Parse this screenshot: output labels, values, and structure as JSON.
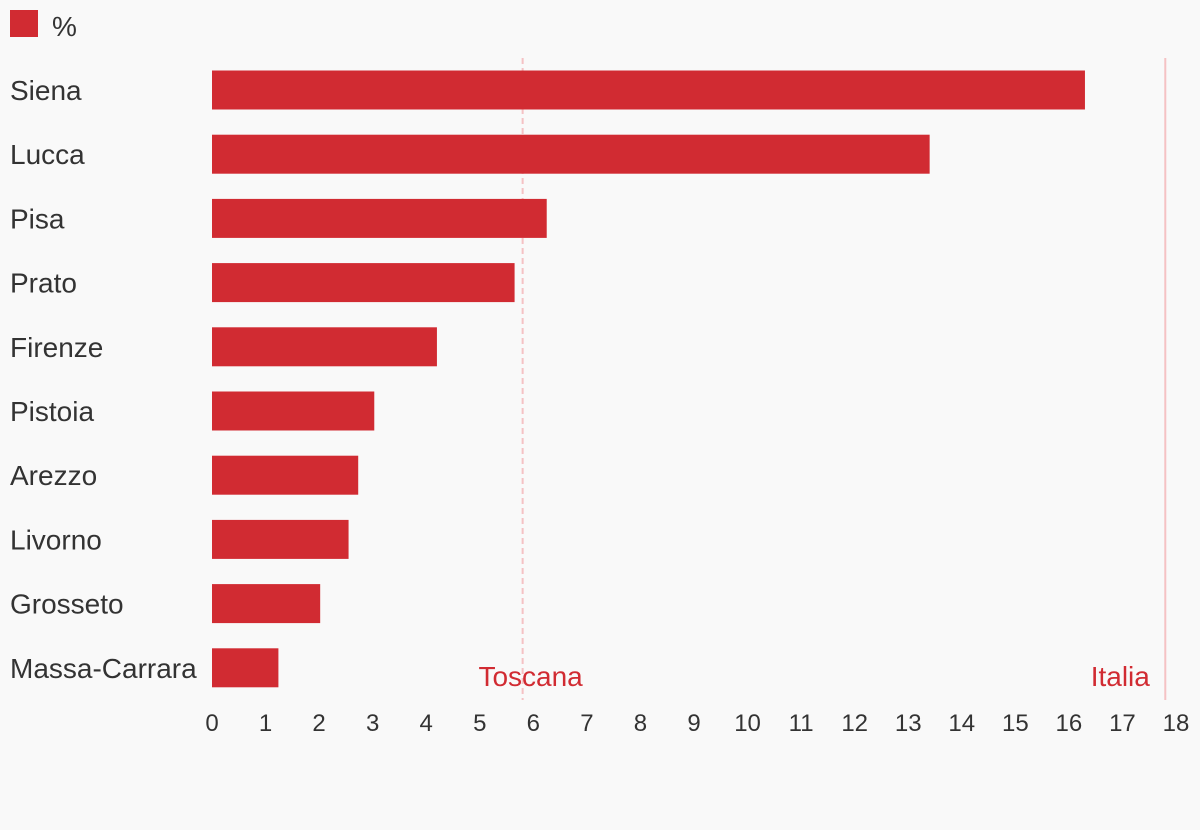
{
  "colors": {
    "bar": "#d12b32",
    "reference": "#f5c2c4",
    "reference_text": "#d12b32",
    "text": "#333333",
    "background": "#f9f9f9"
  },
  "chart_data": {
    "type": "bar",
    "orientation": "horizontal",
    "legend": {
      "position": "top-left",
      "entries": [
        "%"
      ]
    },
    "categories": [
      "Siena",
      "Lucca",
      "Pisa",
      "Prato",
      "Firenze",
      "Pistoia",
      "Arezzo",
      "Livorno",
      "Grosseto",
      "Massa-Carrara"
    ],
    "series": [
      {
        "name": "%",
        "values": [
          16.3,
          13.4,
          6.25,
          5.65,
          4.2,
          3.03,
          2.73,
          2.55,
          2.02,
          1.24
        ]
      }
    ],
    "xlim": [
      0,
      18
    ],
    "xticks": [
      0,
      1,
      2,
      3,
      4,
      5,
      6,
      7,
      8,
      9,
      10,
      11,
      12,
      13,
      14,
      15,
      16,
      17,
      18
    ],
    "reference_lines": [
      {
        "label": "Toscana",
        "value": 5.8,
        "style": "dashed"
      },
      {
        "label": "Italia",
        "value": 17.8,
        "style": "solid"
      }
    ],
    "grid": false
  }
}
